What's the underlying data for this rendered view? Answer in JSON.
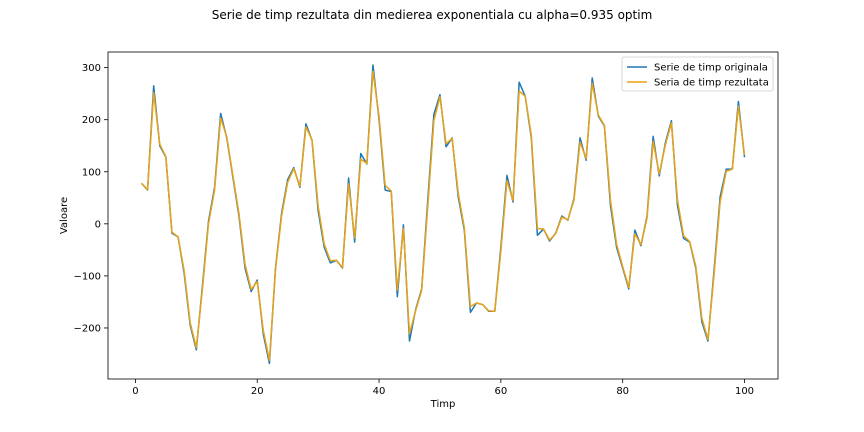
{
  "chart_data": {
    "type": "line",
    "title": "Serie de timp rezultata din medierea exponentiala cu alpha=0.935 optim",
    "xlabel": "Timp",
    "ylabel": "Valoare",
    "xlim": [
      -4.5,
      105.5
    ],
    "ylim": [
      -298,
      330
    ],
    "xticks": [
      0,
      20,
      40,
      60,
      80,
      100
    ],
    "yticks": [
      -200,
      -100,
      0,
      100,
      200,
      300
    ],
    "legend_position": "top-right",
    "grid": false,
    "x": [
      1,
      2,
      3,
      4,
      5,
      6,
      7,
      8,
      9,
      10,
      11,
      12,
      13,
      14,
      15,
      16,
      17,
      18,
      19,
      20,
      21,
      22,
      23,
      24,
      25,
      26,
      27,
      28,
      29,
      30,
      31,
      32,
      33,
      34,
      35,
      36,
      37,
      38,
      39,
      40,
      41,
      42,
      43,
      44,
      45,
      46,
      47,
      48,
      49,
      50,
      51,
      52,
      53,
      54,
      55,
      56,
      57,
      58,
      59,
      60,
      61,
      62,
      63,
      64,
      65,
      66,
      67,
      68,
      69,
      70,
      71,
      72,
      73,
      74,
      75,
      76,
      77,
      78,
      79,
      80,
      81,
      82,
      83,
      84,
      85,
      86,
      87,
      88,
      89,
      90,
      91,
      92,
      93,
      94,
      95,
      96,
      97,
      98,
      99,
      100
    ],
    "series": [
      {
        "name": "Serie de timp originala",
        "color": "#1f77b4",
        "values": [
          78,
          65,
          265,
          150,
          128,
          -18,
          -25,
          -95,
          -195,
          -242,
          -120,
          5,
          70,
          212,
          165,
          90,
          15,
          -85,
          -130,
          -108,
          -212,
          -268,
          -85,
          20,
          85,
          108,
          70,
          192,
          160,
          25,
          -45,
          -75,
          -70,
          -85,
          88,
          -35,
          135,
          115,
          305,
          200,
          65,
          62,
          -140,
          -2,
          -225,
          -165,
          -125,
          45,
          210,
          248,
          148,
          165,
          52,
          -12,
          -170,
          -152,
          -155,
          -168,
          -168,
          -45,
          93,
          42,
          272,
          245,
          165,
          -22,
          -10,
          -33,
          -18,
          15,
          7,
          48,
          165,
          122,
          280,
          207,
          188,
          35,
          -45,
          -85,
          -125,
          -12,
          -42,
          15,
          168,
          92,
          155,
          198,
          35,
          -28,
          -35,
          -85,
          -188,
          -225,
          -90,
          52,
          105,
          105,
          235,
          128
        ]
      },
      {
        "name": "Seria de timp rezultata",
        "color": "#e8a317",
        "values": [
          78,
          66,
          252,
          153,
          129,
          -16,
          -25,
          -90,
          -190,
          -238,
          -126,
          0,
          65,
          203,
          167,
          93,
          20,
          -78,
          -126,
          -111,
          -205,
          -262,
          -88,
          15,
          80,
          106,
          72,
          186,
          161,
          34,
          -39,
          -71,
          -70,
          -84,
          77,
          -27,
          124,
          116,
          293,
          206,
          74,
          63,
          -127,
          -9,
          -211,
          -167,
          -128,
          33,
          198,
          244,
          154,
          164,
          59,
          -7,
          -159,
          -152,
          -155,
          -167,
          -168,
          -53,
          83,
          45,
          255,
          245,
          170,
          -9,
          -10,
          -31,
          -19,
          13,
          8,
          45,
          157,
          125,
          270,
          209,
          189,
          45,
          -39,
          -82,
          -122,
          -19,
          -40,
          11,
          158,
          96,
          151,
          194,
          45,
          -23,
          -34,
          -81,
          -181,
          -222,
          -98,
          42,
          101,
          105,
          226,
          132
        ]
      }
    ]
  }
}
